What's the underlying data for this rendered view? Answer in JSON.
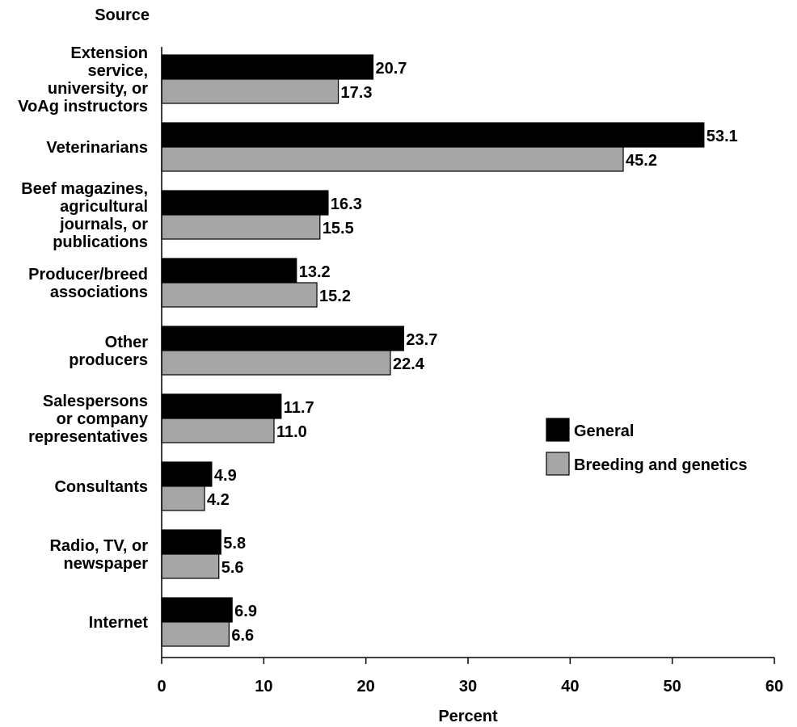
{
  "chart_data": {
    "type": "bar",
    "orientation": "horizontal",
    "y_header": "Source",
    "xlabel": "Percent",
    "xlim": [
      0,
      60
    ],
    "xticks": [
      0,
      10,
      20,
      30,
      40,
      50,
      60
    ],
    "grid": false,
    "legend_position": "right",
    "categories": [
      [
        "Extension",
        "service,",
        "university, or",
        "VoAg instructors"
      ],
      [
        "Veterinarians"
      ],
      [
        "Beef magazines,",
        "agricultural",
        "journals, or",
        "publications"
      ],
      [
        "Producer/breed",
        "associations"
      ],
      [
        "Other",
        "producers"
      ],
      [
        "Salespersons",
        "or company",
        "representatives"
      ],
      [
        "Consultants"
      ],
      [
        "Radio, TV, or",
        "newspaper"
      ],
      [
        "Internet"
      ]
    ],
    "series": [
      {
        "name": "General",
        "color": "#000000",
        "values": [
          20.7,
          53.1,
          16.3,
          13.2,
          23.7,
          11.7,
          4.9,
          5.8,
          6.9
        ],
        "labels": [
          "20.7",
          "53.1",
          "16.3",
          "13.2",
          "23.7",
          "11.7",
          "4.9",
          "5.8",
          "6.9"
        ]
      },
      {
        "name": "Breeding and genetics",
        "color": "#a6a6a6",
        "values": [
          17.3,
          45.2,
          15.5,
          15.2,
          22.4,
          11.0,
          4.2,
          5.6,
          6.6
        ],
        "labels": [
          "17.3",
          "45.2",
          "15.5",
          "15.2",
          "22.4",
          "11.0",
          "4.2",
          "5.6",
          "6.6"
        ]
      }
    ]
  }
}
